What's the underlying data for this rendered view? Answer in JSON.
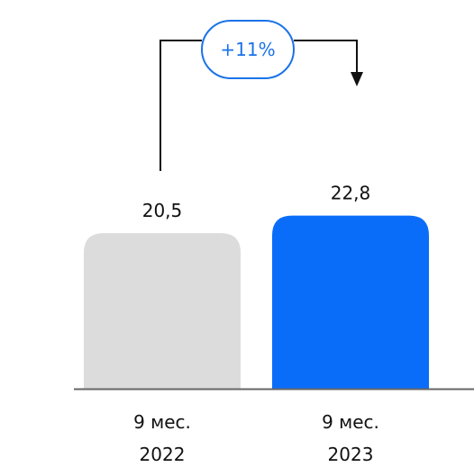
{
  "chart_data": {
    "type": "bar",
    "categories": [
      {
        "line1": "9 мес.",
        "line2": "2022"
      },
      {
        "line1": "9 мес.",
        "line2": "2023"
      }
    ],
    "values": [
      20.5,
      22.8
    ],
    "value_labels": [
      "20,5",
      "22,8"
    ],
    "bar_colors": [
      "#dcdcdc",
      "#0a6dfa"
    ],
    "ylim": [
      0,
      23
    ],
    "grid": false,
    "legend": "none",
    "annotation": {
      "text": "+11%",
      "color": "#1a73e8",
      "from": 0,
      "to": 1
    }
  },
  "axis_color": "#666666",
  "connector_color": "#111111"
}
